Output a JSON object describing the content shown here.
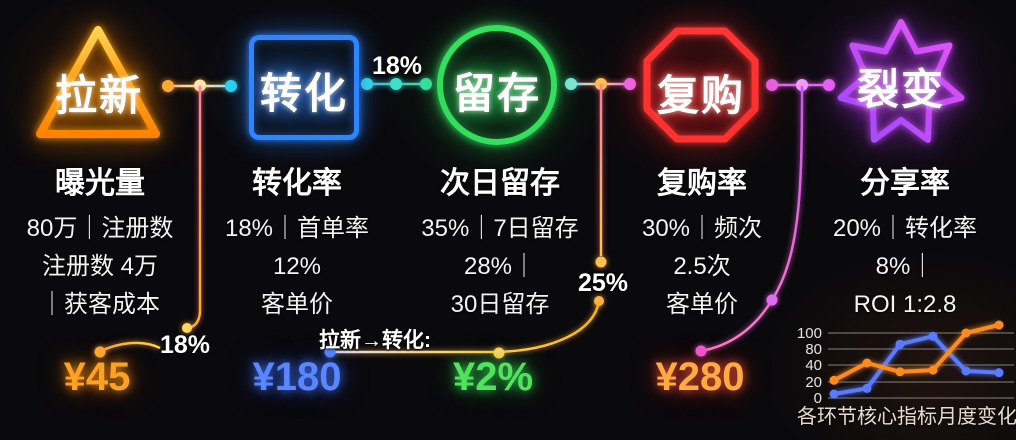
{
  "stages": [
    {
      "shape": "triangle",
      "label": "拉新",
      "color": "#ff9d00",
      "title": "曝光量",
      "metrics": [
        "80万｜注册数",
        "注册数 4万",
        "｜获客成本"
      ],
      "value": "¥45"
    },
    {
      "shape": "rounded-square",
      "label": "转化",
      "color": "#2e86ff",
      "title": "转化率",
      "metrics": [
        "18%｜首单率",
        "12%",
        "客单价"
      ],
      "value": "¥180"
    },
    {
      "shape": "circle",
      "label": "留存",
      "color": "#35e05e",
      "title": "次日留存",
      "metrics": [
        "35%｜7日留存",
        "28%｜",
        "30日留存"
      ],
      "value": "¥2%"
    },
    {
      "shape": "octagon",
      "label": "复购",
      "color": "#ff3434",
      "title": "复购率",
      "metrics": [
        "30%｜频次",
        "2.5次",
        "客单价"
      ],
      "value": "¥280"
    },
    {
      "shape": "star",
      "label": "裂变",
      "color": "#c44dff",
      "title": "分享率",
      "metrics": [
        "20%｜转化率",
        "8%｜",
        "ROI 1:2.8"
      ]
    }
  ],
  "flow_labels": {
    "convert_to_retain": "18%",
    "acquisition_drop": "18%",
    "retention_drop": "25%",
    "bridge": "拉新→转化:"
  },
  "chart_data": {
    "type": "line",
    "x": [
      1,
      2,
      3,
      4,
      5,
      6
    ],
    "series": [
      {
        "name": "blue-series",
        "color": "#5a7bff",
        "values": [
          5,
          12,
          86,
          96,
          33,
          31
        ]
      },
      {
        "name": "orange-series",
        "color": "#ff8c1a",
        "values": [
          22,
          45,
          32,
          34,
          100,
          110
        ]
      }
    ],
    "yticks": [
      0,
      20,
      40,
      80,
      100
    ],
    "grid": true,
    "legend": "none",
    "title": "各环节核心指标月度变化"
  }
}
